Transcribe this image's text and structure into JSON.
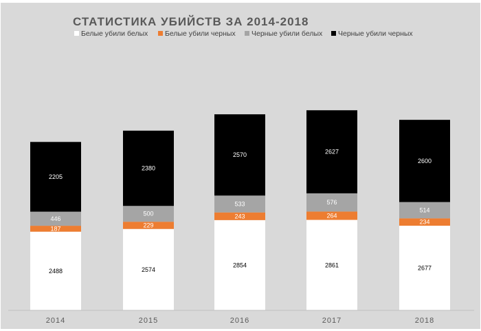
{
  "chart_data": {
    "type": "bar",
    "stacked": true,
    "title": "СТАТИСТИКА УБИЙСТВ ЗА 2014-2018",
    "categories": [
      "2014",
      "2015",
      "2016",
      "2017",
      "2018"
    ],
    "series": [
      {
        "name": "Белые убили белых",
        "color": "#ffffff",
        "label_color": "#000000",
        "values": [
          2488,
          2574,
          2854,
          2861,
          2677
        ]
      },
      {
        "name": "Белые убили черных",
        "color": "#ed7d31",
        "label_color": "#ffffff",
        "values": [
          187,
          229,
          243,
          264,
          234
        ]
      },
      {
        "name": "Черные убили белых",
        "color": "#a5a5a5",
        "label_color": "#ffffff",
        "values": [
          446,
          500,
          533,
          576,
          514
        ]
      },
      {
        "name": "Черные убили черных",
        "color": "#000000",
        "label_color": "#ffffff",
        "values": [
          2205,
          2380,
          2570,
          2627,
          2600
        ]
      }
    ],
    "legend_position": "top",
    "data_labels": true,
    "ylim": [
      0,
      6500
    ],
    "grid": false,
    "background_color": "#d9d9d9"
  }
}
